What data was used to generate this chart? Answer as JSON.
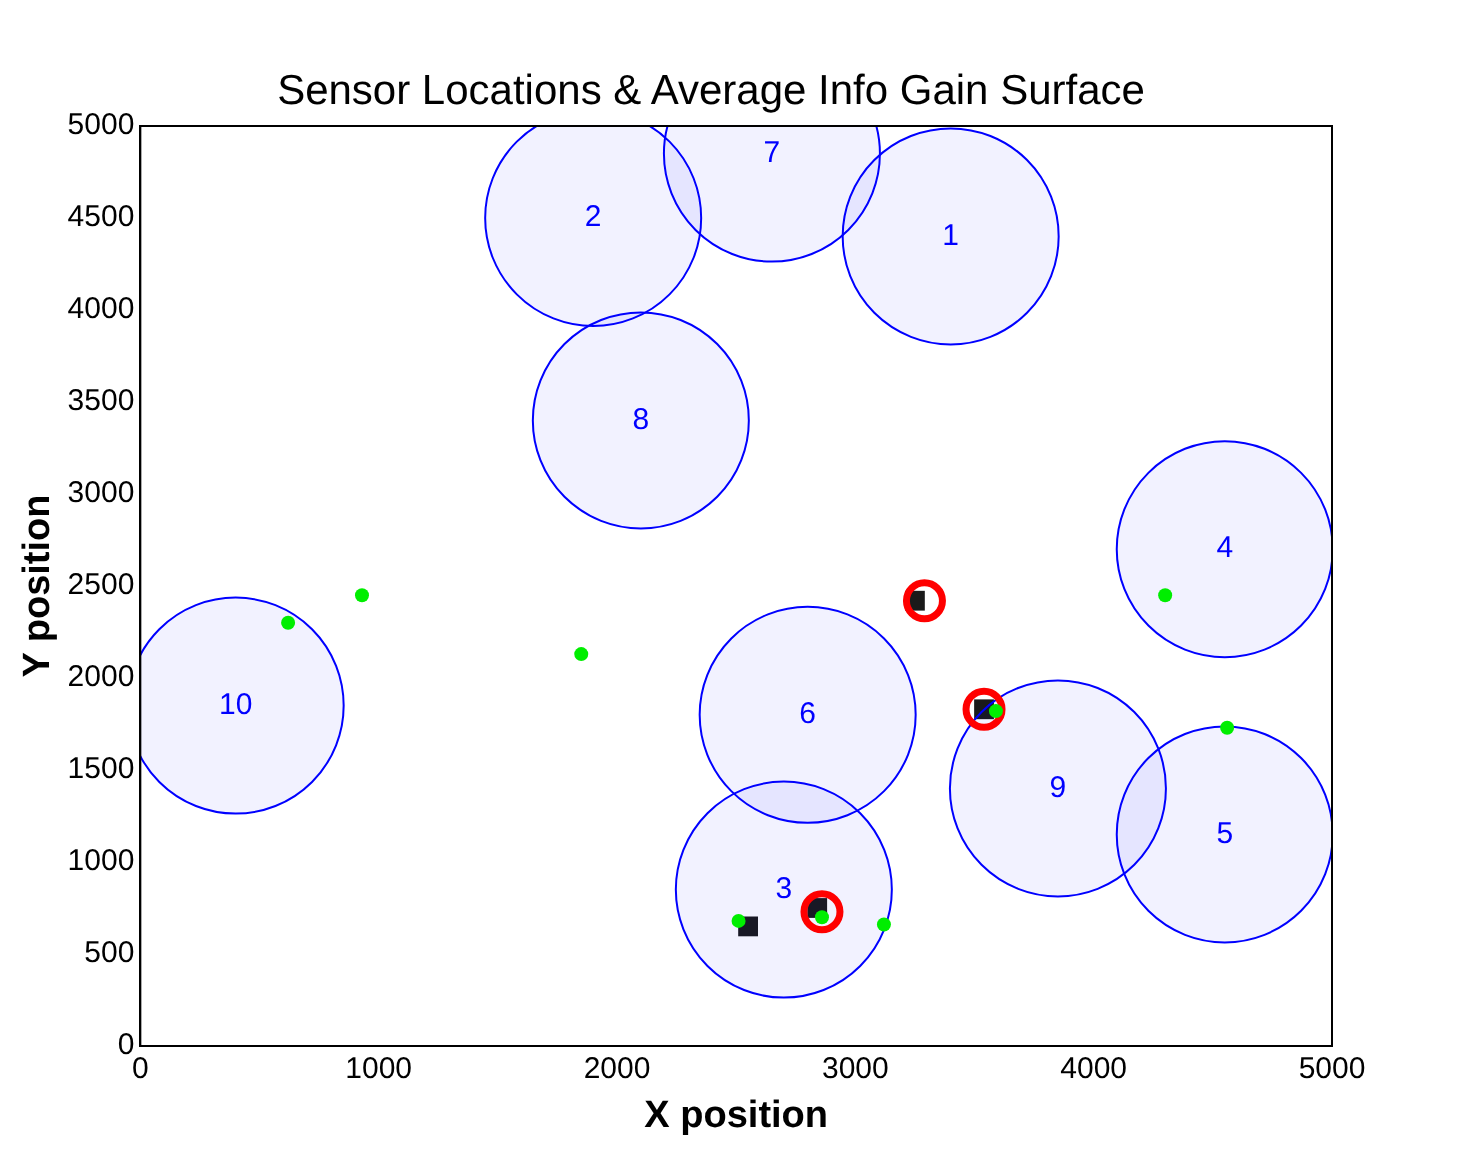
{
  "chart_data": {
    "type": "scatter",
    "title": "Sensor Locations & Average Info Gain Surface",
    "xlabel": "X position",
    "ylabel": "Y position",
    "xlim": [
      0,
      5000
    ],
    "xticks": [
      0,
      1000,
      2000,
      3000,
      4000,
      5000
    ],
    "ylim": [
      0,
      5000
    ],
    "yticks": [
      0,
      500,
      1000,
      1500,
      2000,
      2500,
      3000,
      3500,
      4000,
      4500,
      5000
    ],
    "grid": false,
    "series": [
      {
        "type": "scatter",
        "marker": "square",
        "color": "#1a1a1a",
        "x": [
          2550,
          2840,
          3540,
          3250
        ],
        "values": [
          650,
          750,
          1830,
          2420
        ]
      },
      {
        "type": "bubble",
        "color": "#0000ff",
        "x": [
          3400,
          1900,
          2700,
          4550,
          4550,
          2800,
          2650,
          2100,
          3850,
          400
        ],
        "values": [
          4400,
          4500,
          850,
          2700,
          1150,
          1800,
          4850,
          3400,
          1400,
          1850
        ],
        "sizes": [
          1,
          1,
          1,
          1,
          1,
          1,
          1,
          1,
          1,
          1
        ]
      },
      {
        "type": "scatter",
        "marker": "circle",
        "color": "#00ee00",
        "x": [
          620,
          930,
          1850,
          4300,
          3590,
          4560,
          2510,
          2860,
          3120
        ],
        "values": [
          2300,
          2450,
          2130,
          2450,
          1820,
          1730,
          680,
          700,
          660
        ]
      },
      {
        "type": "scatter",
        "marker": "circle",
        "color": "#ff0000",
        "x": [
          3540,
          2860,
          3290
        ],
        "values": [
          1830,
          730,
          2420
        ]
      }
    ],
    "annotations": [
      {
        "text": "1",
        "x": 3400,
        "y": 4400
      },
      {
        "text": "2",
        "x": 1900,
        "y": 4500
      },
      {
        "text": "3",
        "x": 2700,
        "y": 850
      },
      {
        "text": "4",
        "x": 4550,
        "y": 2700
      },
      {
        "text": "5",
        "x": 4550,
        "y": 1150
      },
      {
        "text": "6",
        "x": 2800,
        "y": 1800
      },
      {
        "text": "7",
        "x": 2650,
        "y": 4850
      },
      {
        "text": "8",
        "x": 2100,
        "y": 3400
      },
      {
        "text": "9",
        "x": 3850,
        "y": 1400
      },
      {
        "text": "10",
        "x": 400,
        "y": 1850
      }
    ]
  }
}
